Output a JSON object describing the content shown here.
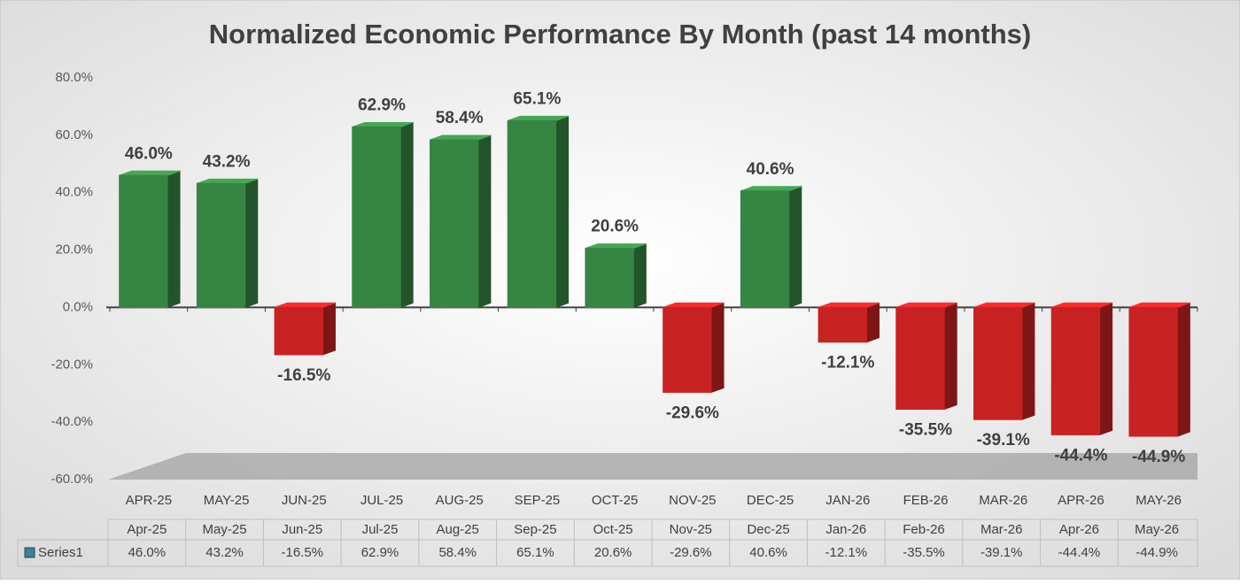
{
  "chart_data": {
    "type": "bar3d",
    "title": "Normalized Economic Performance By Month (past 14 months)",
    "categories": [
      "APR-25",
      "MAY-25",
      "JUN-25",
      "JUL-25",
      "AUG-25",
      "SEP-25",
      "OCT-25",
      "NOV-25",
      "DEC-25",
      "JAN-26",
      "FEB-26",
      "MAR-26",
      "APR-26",
      "MAY-26"
    ],
    "table_categories": [
      "Apr-25",
      "May-25",
      "Jun-25",
      "Jul-25",
      "Aug-25",
      "Sep-25",
      "Oct-25",
      "Nov-25",
      "Dec-25",
      "Jan-26",
      "Feb-26",
      "Mar-26",
      "Apr-26",
      "May-26"
    ],
    "series": [
      {
        "name": "Series1",
        "color": "#31859c",
        "positive_color": "#3a8c46",
        "negative_color": "#d42424",
        "values": [
          46.0,
          43.2,
          -16.5,
          62.9,
          58.4,
          65.1,
          20.6,
          -29.6,
          40.6,
          -12.1,
          -35.5,
          -39.1,
          -44.4,
          -44.9
        ],
        "value_labels": [
          "46.0%",
          "43.2%",
          "-16.5%",
          "62.9%",
          "58.4%",
          "65.1%",
          "20.6%",
          "-29.6%",
          "40.6%",
          "-12.1%",
          "-35.5%",
          "-39.1%",
          "-44.4%",
          "-44.9%"
        ]
      }
    ],
    "ylim": [
      -60,
      80
    ],
    "yticks": [
      {
        "value": -60,
        "label": "-60.0%"
      },
      {
        "value": -40,
        "label": "-40.0%"
      },
      {
        "value": -20,
        "label": "-20.0%"
      },
      {
        "value": 0,
        "label": "0.0%"
      },
      {
        "value": 20,
        "label": "20.0%"
      },
      {
        "value": 40,
        "label": "40.0%"
      },
      {
        "value": 60,
        "label": "60.0%"
      },
      {
        "value": 80,
        "label": "80.0%"
      }
    ],
    "grid": true
  }
}
